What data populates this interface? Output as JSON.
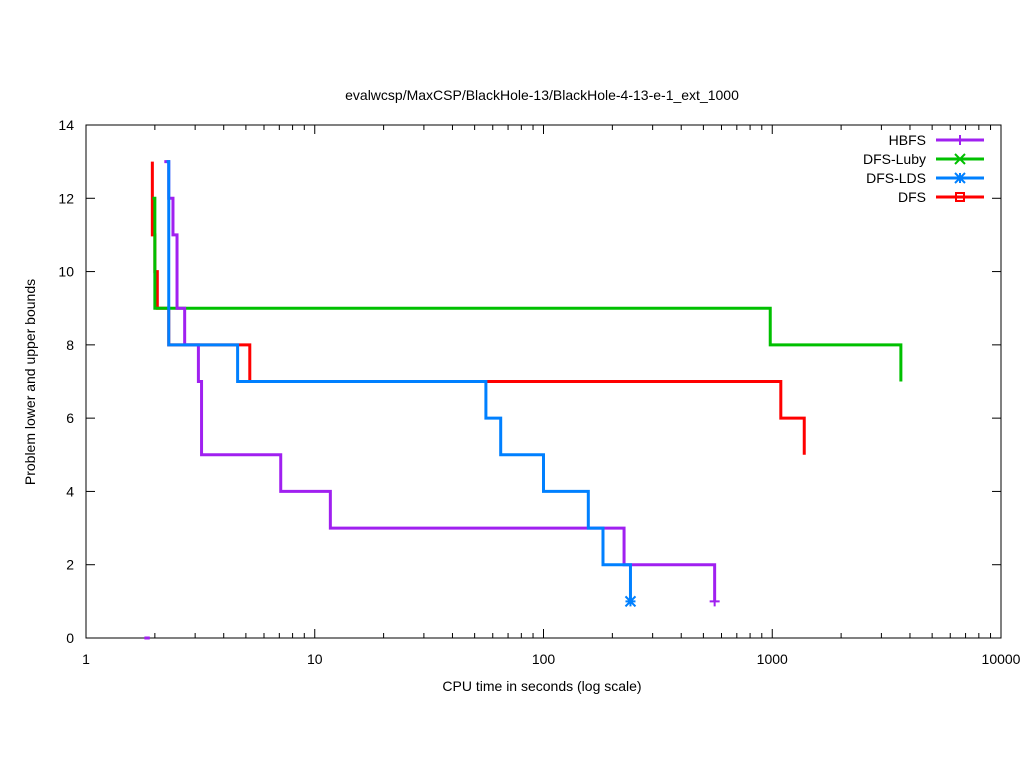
{
  "chart_data": {
    "type": "line",
    "title": "evalwcsp/MaxCSP/BlackHole-13/BlackHole-4-13-e-1_ext_1000",
    "xlabel": "CPU time in seconds (log scale)",
    "ylabel": "Problem lower and upper bounds",
    "xscale": "log",
    "xlim": [
      1,
      10000
    ],
    "ylim": [
      0,
      14
    ],
    "xticks": [
      1,
      10,
      100,
      1000,
      10000
    ],
    "xtick_labels": [
      "1",
      "10",
      "100",
      "1000",
      "10000"
    ],
    "yticks": [
      0,
      2,
      4,
      6,
      8,
      10,
      12,
      14
    ],
    "ytick_labels": [
      "0",
      "2",
      "4",
      "6",
      "8",
      "10",
      "12",
      "14"
    ],
    "legend_position": "top-right",
    "grid": false,
    "series": [
      {
        "name": "HBFS",
        "color": "#a020f0",
        "marker": "plus",
        "points": [
          [
            2.2,
            13
          ],
          [
            2.3,
            13
          ],
          [
            2.3,
            12
          ],
          [
            2.4,
            12
          ],
          [
            2.4,
            11
          ],
          [
            2.5,
            11
          ],
          [
            2.5,
            9
          ],
          [
            2.7,
            9
          ],
          [
            2.7,
            8
          ],
          [
            3.1,
            8
          ],
          [
            3.1,
            7
          ],
          [
            3.2,
            7
          ],
          [
            3.2,
            5
          ],
          [
            7.1,
            5
          ],
          [
            7.1,
            4
          ],
          [
            11.7,
            4
          ],
          [
            11.7,
            3
          ],
          [
            225,
            3
          ],
          [
            225,
            2
          ],
          [
            560,
            2
          ],
          [
            560,
            1
          ]
        ],
        "lower_points": [
          [
            1.8,
            0
          ],
          [
            1.9,
            0
          ]
        ],
        "marker_points": [
          [
            560,
            1
          ]
        ]
      },
      {
        "name": "DFS-Luby",
        "color": "#00c000",
        "marker": "x",
        "points": [
          [
            1.95,
            12
          ],
          [
            2.0,
            12
          ],
          [
            2.0,
            9
          ],
          [
            980,
            9
          ],
          [
            980,
            8
          ],
          [
            3650,
            8
          ],
          [
            3650,
            7
          ]
        ],
        "marker_points": []
      },
      {
        "name": "DFS-LDS",
        "color": "#0080ff",
        "marker": "star",
        "points": [
          [
            2.25,
            13
          ],
          [
            2.3,
            13
          ],
          [
            2.3,
            8
          ],
          [
            4.6,
            8
          ],
          [
            4.6,
            7
          ],
          [
            56,
            7
          ],
          [
            56,
            6
          ],
          [
            65,
            6
          ],
          [
            65,
            5
          ],
          [
            100,
            5
          ],
          [
            100,
            4
          ],
          [
            157,
            4
          ],
          [
            157,
            3
          ],
          [
            182,
            3
          ],
          [
            182,
            2
          ],
          [
            240,
            2
          ],
          [
            240,
            1
          ]
        ],
        "marker_points": [
          [
            240,
            1
          ]
        ]
      },
      {
        "name": "DFS",
        "color": "#ff0000",
        "marker": "square",
        "points": [
          [
            1.95,
            13
          ],
          [
            1.95,
            11
          ],
          [
            2.0,
            11
          ],
          [
            2.0,
            10
          ],
          [
            2.05,
            10
          ],
          [
            2.05,
            9
          ],
          [
            2.3,
            9
          ],
          [
            2.3,
            8
          ],
          [
            5.2,
            8
          ],
          [
            5.2,
            7
          ],
          [
            1090,
            7
          ],
          [
            1090,
            6
          ],
          [
            1380,
            6
          ],
          [
            1380,
            5
          ]
        ],
        "marker_points": []
      }
    ]
  }
}
